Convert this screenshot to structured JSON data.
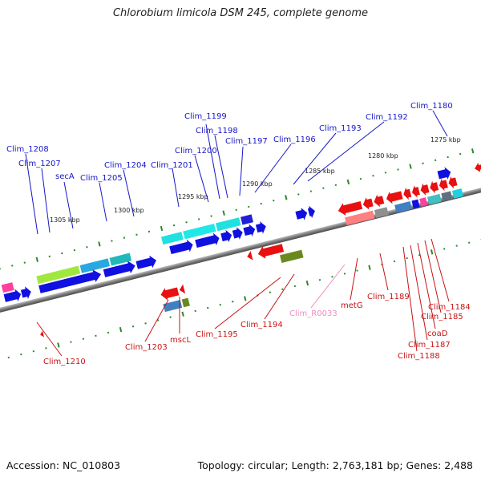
{
  "title": "Chlorobium limicola DSM 245, complete genome",
  "accession": "Accession: NC_010803",
  "summary": "Topology: circular; Length: 2,763,181 bp; Genes: 2,488",
  "kbp_ticks": [
    "1305 kbp",
    "1300 kbp",
    "1295 kbp",
    "1290 kbp",
    "1285 kbp",
    "1280 kbp",
    "1275 kbp"
  ],
  "forward_genes": [
    "Clim_1180",
    "Clim_1192",
    "Clim_1193",
    "Clim_1196",
    "Clim_1197",
    "Clim_1198",
    "Clim_1199",
    "Clim_1200",
    "Clim_1201",
    "Clim_1204",
    "Clim_1205",
    "secA",
    "Clim_1207",
    "Clim_1208"
  ],
  "reverse_genes": [
    "Clim_1210",
    "Clim_1203",
    "mscL",
    "Clim_1195",
    "Clim_1194",
    "Clim_R0033",
    "metG",
    "Clim_1189",
    "Clim_1184",
    "Clim_1185",
    "coaD",
    "Clim_1187",
    "Clim_1188"
  ],
  "colors": {
    "forward_label": "#1616c8",
    "reverse_label": "#c81414",
    "rna_label": "#f08cc0",
    "forward_gene": "#1010e0",
    "reverse_gene": "#e81010",
    "backbone": "#888888",
    "tick": "#2a8a2a"
  }
}
